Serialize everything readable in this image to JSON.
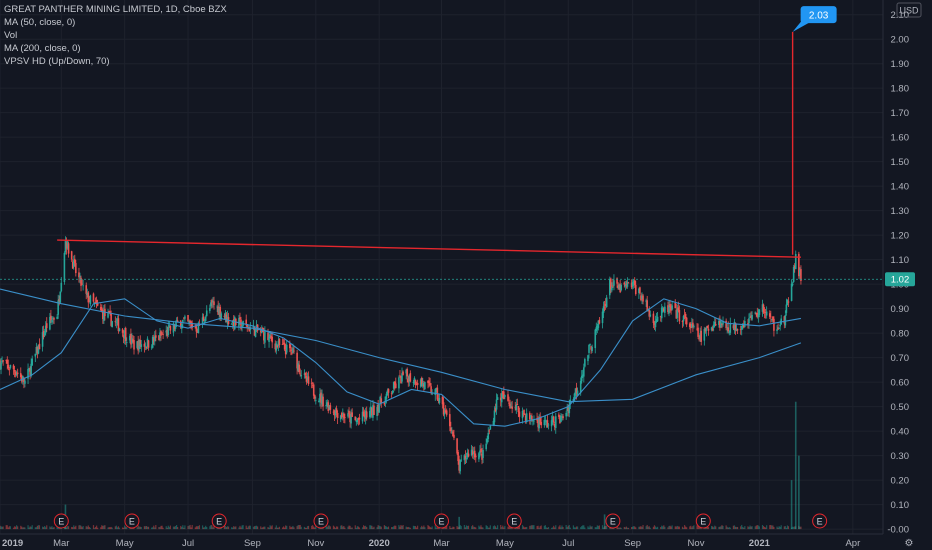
{
  "chart_data": {
    "type": "candlestick",
    "title": "GREAT PANTHER MINING LIMITED, 1D, Cboe BZX",
    "indicators": [
      "MA (50, close, 0)",
      "Vol",
      "MA (200, close, 0)",
      "VPSV HD (Up/Down, 70)"
    ],
    "currency": "USD",
    "y_ticks": [
      "2.10",
      "2.00",
      "1.90",
      "1.80",
      "1.70",
      "1.60",
      "1.50",
      "1.40",
      "1.30",
      "1.20",
      "1.10",
      "1.00",
      "0.90",
      "0.80",
      "0.70",
      "0.60",
      "0.50",
      "0.40",
      "0.30",
      "0.20",
      "0.10",
      "-0.00"
    ],
    "ylim": [
      -0.02,
      2.16
    ],
    "x_ticks": [
      "2019",
      "Mar",
      "May",
      "Jul",
      "Sep",
      "Nov",
      "2020",
      "Mar",
      "May",
      "Jul",
      "Sep",
      "Nov",
      "2021",
      "Apr"
    ],
    "x_range": [
      "2019-01-01",
      "2021-04-30"
    ],
    "earnings_marker_label": "E",
    "earnings_dates": [
      "2019-03-01",
      "2019-05-08",
      "2019-07-31",
      "2019-11-06",
      "2020-03-01",
      "2020-05-10",
      "2020-08-13",
      "2020-11-08",
      "2021-02-28"
    ],
    "last_price_label": "1.02",
    "last_price": 1.02,
    "spike_callout": "2.03",
    "spike_value": 2.03,
    "spike_date": "2021-02-02",
    "resistance_line": {
      "start_date": "2019-02-25",
      "start_value": 1.18,
      "end_date": "2021-02-10",
      "end_value": 1.11
    },
    "price_path": [
      {
        "date": "2019-01-01",
        "close": 0.68
      },
      {
        "date": "2019-01-15",
        "close": 0.65
      },
      {
        "date": "2019-01-25",
        "close": 0.6
      },
      {
        "date": "2019-02-05",
        "close": 0.72
      },
      {
        "date": "2019-02-15",
        "close": 0.83
      },
      {
        "date": "2019-02-25",
        "close": 0.88
      },
      {
        "date": "2019-03-05",
        "close": 1.18
      },
      {
        "date": "2019-03-15",
        "close": 1.05
      },
      {
        "date": "2019-03-25",
        "close": 0.95
      },
      {
        "date": "2019-04-10",
        "close": 0.88
      },
      {
        "date": "2019-04-25",
        "close": 0.83
      },
      {
        "date": "2019-05-10",
        "close": 0.75
      },
      {
        "date": "2019-05-25",
        "close": 0.76
      },
      {
        "date": "2019-06-10",
        "close": 0.8
      },
      {
        "date": "2019-06-25",
        "close": 0.85
      },
      {
        "date": "2019-07-10",
        "close": 0.82
      },
      {
        "date": "2019-07-25",
        "close": 0.92
      },
      {
        "date": "2019-08-10",
        "close": 0.85
      },
      {
        "date": "2019-08-25",
        "close": 0.83
      },
      {
        "date": "2019-09-10",
        "close": 0.8
      },
      {
        "date": "2019-09-25",
        "close": 0.75
      },
      {
        "date": "2019-10-10",
        "close": 0.72
      },
      {
        "date": "2019-10-20",
        "close": 0.62
      },
      {
        "date": "2019-11-01",
        "close": 0.55
      },
      {
        "date": "2019-11-20",
        "close": 0.48
      },
      {
        "date": "2019-12-10",
        "close": 0.44
      },
      {
        "date": "2019-12-25",
        "close": 0.48
      },
      {
        "date": "2020-01-10",
        "close": 0.55
      },
      {
        "date": "2020-01-25",
        "close": 0.63
      },
      {
        "date": "2020-02-10",
        "close": 0.6
      },
      {
        "date": "2020-02-25",
        "close": 0.55
      },
      {
        "date": "2020-03-10",
        "close": 0.42
      },
      {
        "date": "2020-03-18",
        "close": 0.25
      },
      {
        "date": "2020-03-28",
        "close": 0.32
      },
      {
        "date": "2020-04-10",
        "close": 0.3
      },
      {
        "date": "2020-04-25",
        "close": 0.55
      },
      {
        "date": "2020-05-10",
        "close": 0.5
      },
      {
        "date": "2020-05-25",
        "close": 0.45
      },
      {
        "date": "2020-06-10",
        "close": 0.43
      },
      {
        "date": "2020-06-25",
        "close": 0.45
      },
      {
        "date": "2020-07-10",
        "close": 0.58
      },
      {
        "date": "2020-07-20",
        "close": 0.72
      },
      {
        "date": "2020-08-01",
        "close": 0.85
      },
      {
        "date": "2020-08-10",
        "close": 1.0
      },
      {
        "date": "2020-08-20",
        "close": 0.98
      },
      {
        "date": "2020-09-01",
        "close": 1.0
      },
      {
        "date": "2020-09-10",
        "close": 0.95
      },
      {
        "date": "2020-09-20",
        "close": 0.85
      },
      {
        "date": "2020-10-05",
        "close": 0.9
      },
      {
        "date": "2020-10-20",
        "close": 0.86
      },
      {
        "date": "2020-11-05",
        "close": 0.78
      },
      {
        "date": "2020-11-20",
        "close": 0.85
      },
      {
        "date": "2020-12-05",
        "close": 0.82
      },
      {
        "date": "2020-12-20",
        "close": 0.85
      },
      {
        "date": "2021-01-05",
        "close": 0.9
      },
      {
        "date": "2021-01-15",
        "close": 0.83
      },
      {
        "date": "2021-01-25",
        "close": 0.85
      },
      {
        "date": "2021-02-01",
        "close": 1.0
      },
      {
        "date": "2021-02-05",
        "close": 1.1
      },
      {
        "date": "2021-02-10",
        "close": 1.02
      }
    ],
    "ma50": [
      {
        "date": "2019-01-01",
        "value": 0.57
      },
      {
        "date": "2019-02-01",
        "value": 0.63
      },
      {
        "date": "2019-03-01",
        "value": 0.72
      },
      {
        "date": "2019-04-01",
        "value": 0.92
      },
      {
        "date": "2019-05-01",
        "value": 0.94
      },
      {
        "date": "2019-06-01",
        "value": 0.85
      },
      {
        "date": "2019-07-01",
        "value": 0.82
      },
      {
        "date": "2019-08-01",
        "value": 0.86
      },
      {
        "date": "2019-09-01",
        "value": 0.83
      },
      {
        "date": "2019-10-01",
        "value": 0.78
      },
      {
        "date": "2019-11-01",
        "value": 0.68
      },
      {
        "date": "2019-12-01",
        "value": 0.56
      },
      {
        "date": "2020-01-01",
        "value": 0.51
      },
      {
        "date": "2020-02-01",
        "value": 0.57
      },
      {
        "date": "2020-03-01",
        "value": 0.55
      },
      {
        "date": "2020-04-01",
        "value": 0.43
      },
      {
        "date": "2020-05-01",
        "value": 0.42
      },
      {
        "date": "2020-06-01",
        "value": 0.45
      },
      {
        "date": "2020-07-01",
        "value": 0.5
      },
      {
        "date": "2020-08-01",
        "value": 0.65
      },
      {
        "date": "2020-09-01",
        "value": 0.85
      },
      {
        "date": "2020-10-01",
        "value": 0.94
      },
      {
        "date": "2020-11-01",
        "value": 0.9
      },
      {
        "date": "2020-12-01",
        "value": 0.84
      },
      {
        "date": "2021-01-01",
        "value": 0.83
      },
      {
        "date": "2021-02-10",
        "value": 0.86
      }
    ],
    "ma200": [
      {
        "date": "2019-01-01",
        "value": 0.98
      },
      {
        "date": "2019-03-01",
        "value": 0.92
      },
      {
        "date": "2019-05-01",
        "value": 0.87
      },
      {
        "date": "2019-07-01",
        "value": 0.84
      },
      {
        "date": "2019-09-01",
        "value": 0.82
      },
      {
        "date": "2019-11-01",
        "value": 0.77
      },
      {
        "date": "2020-01-01",
        "value": 0.7
      },
      {
        "date": "2020-03-01",
        "value": 0.64
      },
      {
        "date": "2020-05-01",
        "value": 0.57
      },
      {
        "date": "2020-07-01",
        "value": 0.52
      },
      {
        "date": "2020-09-01",
        "value": 0.53
      },
      {
        "date": "2020-11-01",
        "value": 0.63
      },
      {
        "date": "2021-01-01",
        "value": 0.7
      },
      {
        "date": "2021-02-10",
        "value": 0.76
      }
    ],
    "volume_spikes": [
      {
        "date": "2019-03-05",
        "value": 0.1
      },
      {
        "date": "2020-03-18",
        "value": 0.05
      },
      {
        "date": "2020-08-05",
        "value": 0.06
      },
      {
        "date": "2021-02-01",
        "value": 0.2
      },
      {
        "date": "2021-02-05",
        "value": 0.52
      },
      {
        "date": "2021-02-08",
        "value": 0.3
      }
    ],
    "colors": {
      "background": "#131722",
      "up": "#26a69a",
      "down": "#ef5350",
      "ma": "#3a8fc9",
      "resistance": "#e5272d",
      "axis_text": "#b2b5be",
      "price_badge": "#26a69a",
      "callout": "#2196f3"
    }
  }
}
